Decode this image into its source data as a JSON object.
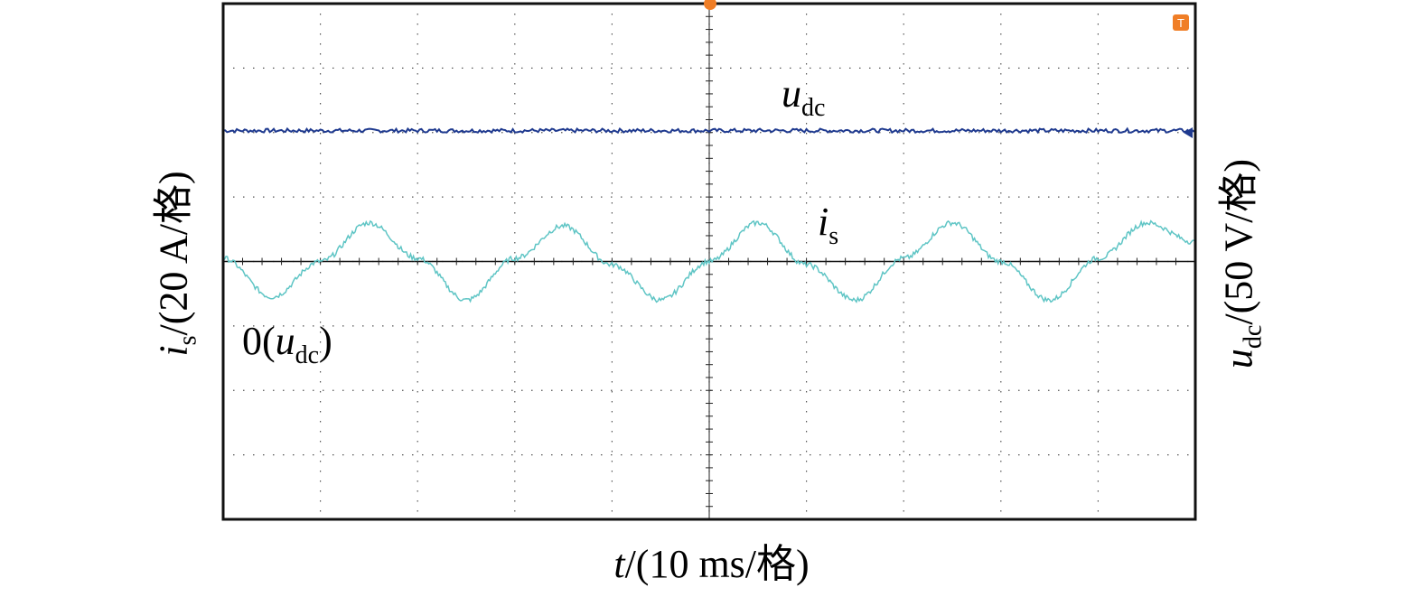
{
  "chart_data": {
    "type": "line",
    "title": "",
    "xlabel": "t/(10 ms/格)",
    "ylabel_left": "is/(20 A/格)",
    "ylabel_right": "udc/(50 V/格)",
    "grid": true,
    "x_divisions": 10,
    "y_divisions": 8,
    "xlim": [
      0,
      10
    ],
    "ylim": [
      -4,
      4
    ],
    "zero_marker": "0(udc)",
    "series": [
      {
        "name": "udc",
        "label_main": "u",
        "label_sub": "dc",
        "color": "#1f3a8f",
        "x": [
          0,
          10
        ],
        "y": [
          2.03,
          2.03
        ]
      },
      {
        "name": "is",
        "label_main": "i",
        "label_sub": "s",
        "color": "#5fc5c5",
        "x": [
          0,
          0.5,
          1,
          1.5,
          2,
          2.5,
          3,
          3.5,
          4,
          4.5,
          5,
          5.5,
          6,
          6.5,
          7,
          7.5,
          8,
          8.5,
          9,
          9.5,
          10
        ],
        "y": [
          0.05,
          -0.55,
          0,
          0.6,
          0.05,
          -0.6,
          0.05,
          0.55,
          -0.05,
          -0.6,
          0,
          0.6,
          -0.05,
          -0.6,
          0.05,
          0.6,
          0,
          -0.6,
          0.05,
          0.6,
          0.3
        ]
      }
    ],
    "axis_units": {
      "x_per_div": "10 ms",
      "is_per_div": "20 A",
      "udc_per_div": "50 V"
    }
  },
  "labels": {
    "xlabel_var": "t",
    "xlabel_rest": "/(10 ms/格)",
    "left_var": "i",
    "left_sub": "s",
    "left_rest": "/(20 A/格)",
    "right_var": "u",
    "right_sub": "dc",
    "right_rest": "/(50 V/格)",
    "zero_main": "0(",
    "zero_var": "u",
    "zero_sub": "dc",
    "zero_end": ")",
    "trigger_marker": "T"
  }
}
